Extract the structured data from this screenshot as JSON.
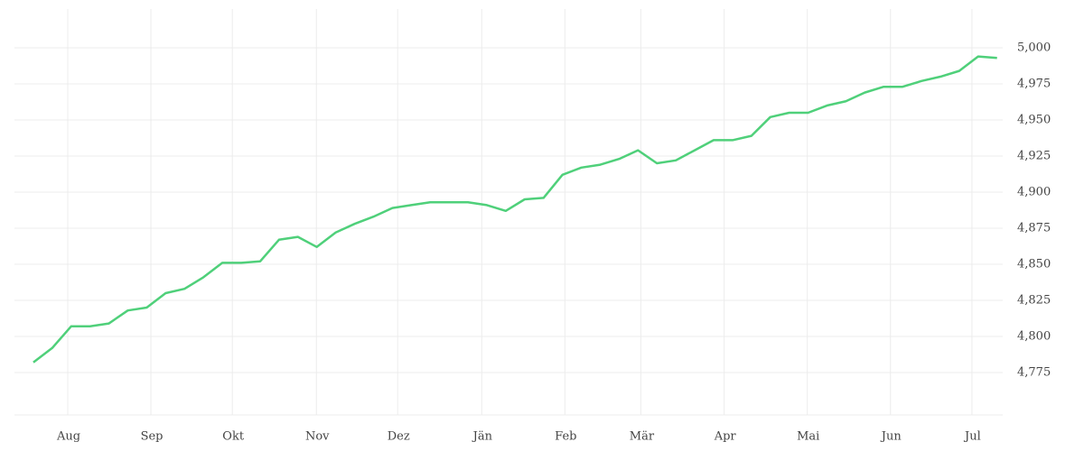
{
  "chart_data": {
    "type": "line",
    "x": [
      0,
      1,
      2,
      3,
      4,
      5,
      6,
      7,
      8,
      9,
      10,
      11,
      12,
      13,
      14,
      15,
      16,
      17,
      18,
      19,
      20,
      21,
      22,
      23,
      24,
      25,
      26,
      27,
      28,
      29,
      30,
      31,
      32,
      33,
      34,
      35,
      36,
      37,
      38,
      39,
      40,
      41,
      42,
      43,
      44,
      45,
      46,
      47,
      48,
      49,
      50,
      51
    ],
    "series": [
      {
        "color": "#4fd07a",
        "values": [
          4782,
          4792,
          4807,
          4807,
          4809,
          4818,
          4820,
          4830,
          4833,
          4841,
          4851,
          4851,
          4852,
          4867,
          4869,
          4862,
          4872,
          4878,
          4883,
          4889,
          4891,
          4893,
          4893,
          4893,
          4891,
          4887,
          4895,
          4896,
          4912,
          4917,
          4919,
          4923,
          4929,
          4920,
          4922,
          4929,
          4936,
          4936,
          4939,
          4952,
          4955,
          4955,
          4960,
          4963,
          4969,
          4973,
          4973,
          4977,
          4980,
          4984,
          4994,
          4993
        ]
      }
    ],
    "xlim": [
      -1,
      51.3
    ],
    "xticks": [
      {
        "value": 1.82,
        "label": "Aug"
      },
      {
        "value": 6.22,
        "label": "Sep"
      },
      {
        "value": 10.53,
        "label": "Okt"
      },
      {
        "value": 14.98,
        "label": "Nov"
      },
      {
        "value": 19.28,
        "label": "Dez"
      },
      {
        "value": 23.73,
        "label": "Jän"
      },
      {
        "value": 28.13,
        "label": "Feb"
      },
      {
        "value": 32.15,
        "label": "Mär"
      },
      {
        "value": 36.56,
        "label": "Apr"
      },
      {
        "value": 40.96,
        "label": "Mai"
      },
      {
        "value": 45.36,
        "label": "Jun"
      },
      {
        "value": 49.67,
        "label": "Jul"
      }
    ],
    "ylim": [
      4745.6,
      5026.9
    ],
    "yticks": [
      {
        "value": 4775,
        "label": "4,775"
      },
      {
        "value": 4800,
        "label": "4,800"
      },
      {
        "value": 4825,
        "label": "4,825"
      },
      {
        "value": 4850,
        "label": "4,850"
      },
      {
        "value": 4875,
        "label": "4,875"
      },
      {
        "value": 4900,
        "label": "4,900"
      },
      {
        "value": 4925,
        "label": "4,925"
      },
      {
        "value": 4950,
        "label": "4,950"
      },
      {
        "value": 4975,
        "label": "4,975"
      },
      {
        "value": 5000,
        "label": "5,000"
      }
    ],
    "grid": true
  }
}
